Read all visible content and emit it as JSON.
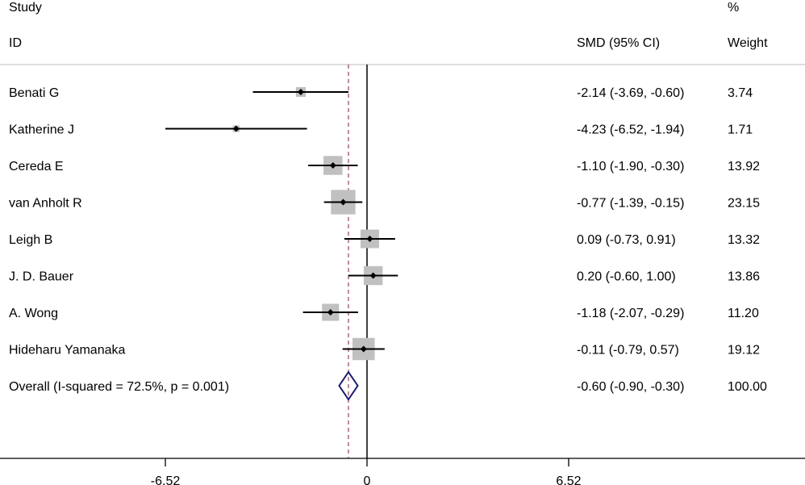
{
  "chart_data": {
    "type": "forest",
    "headers": {
      "study_line1": "Study",
      "study_line2": "ID",
      "effect": "SMD (95% CI)",
      "weight_line1": "%",
      "weight_line2": "Weight"
    },
    "studies": [
      {
        "name": "Benati G",
        "smd": -2.14,
        "lower": -3.69,
        "upper": -0.6,
        "label": "-2.14 (-3.69, -0.60)",
        "weight": 3.74,
        "weight_label": "3.74"
      },
      {
        "name": "Katherine J",
        "smd": -4.23,
        "lower": -6.52,
        "upper": -1.94,
        "label": "-4.23 (-6.52, -1.94)",
        "weight": 1.71,
        "weight_label": "1.71"
      },
      {
        "name": "Cereda E",
        "smd": -1.1,
        "lower": -1.9,
        "upper": -0.3,
        "label": "-1.10 (-1.90, -0.30)",
        "weight": 13.92,
        "weight_label": "13.92"
      },
      {
        "name": "van Anholt R",
        "smd": -0.77,
        "lower": -1.39,
        "upper": -0.15,
        "label": "-0.77 (-1.39, -0.15)",
        "weight": 23.15,
        "weight_label": "23.15"
      },
      {
        "name": "Leigh B",
        "smd": 0.09,
        "lower": -0.73,
        "upper": 0.91,
        "label": "0.09 (-0.73, 0.91)",
        "weight": 13.32,
        "weight_label": "13.32"
      },
      {
        "name": "J. D. Bauer",
        "smd": 0.2,
        "lower": -0.6,
        "upper": 1.0,
        "label": "0.20 (-0.60, 1.00)",
        "weight": 13.86,
        "weight_label": "13.86"
      },
      {
        "name": "A. Wong",
        "smd": -1.18,
        "lower": -2.07,
        "upper": -0.29,
        "label": "-1.18 (-2.07, -0.29)",
        "weight": 11.2,
        "weight_label": "11.20"
      },
      {
        "name": "Hideharu Yamanaka",
        "smd": -0.11,
        "lower": -0.79,
        "upper": 0.57,
        "label": "-0.11 (-0.79, 0.57)",
        "weight": 19.12,
        "weight_label": "19.12"
      }
    ],
    "overall": {
      "name": "Overall  (I-squared = 72.5%, p = 0.001)",
      "smd": -0.6,
      "lower": -0.9,
      "upper": -0.3,
      "label": "-0.60 (-0.90, -0.30)",
      "weight_label": "100.00"
    },
    "x_ticks": [
      -6.52,
      0,
      6.52
    ],
    "x_tick_labels": [
      "-6.52",
      "0",
      "6.52"
    ],
    "null_line": 0,
    "colors": {
      "box": "#c0c0c0",
      "diamond": "#1a1a6e",
      "overall_line": "#a05060",
      "ci": "#000000"
    }
  }
}
